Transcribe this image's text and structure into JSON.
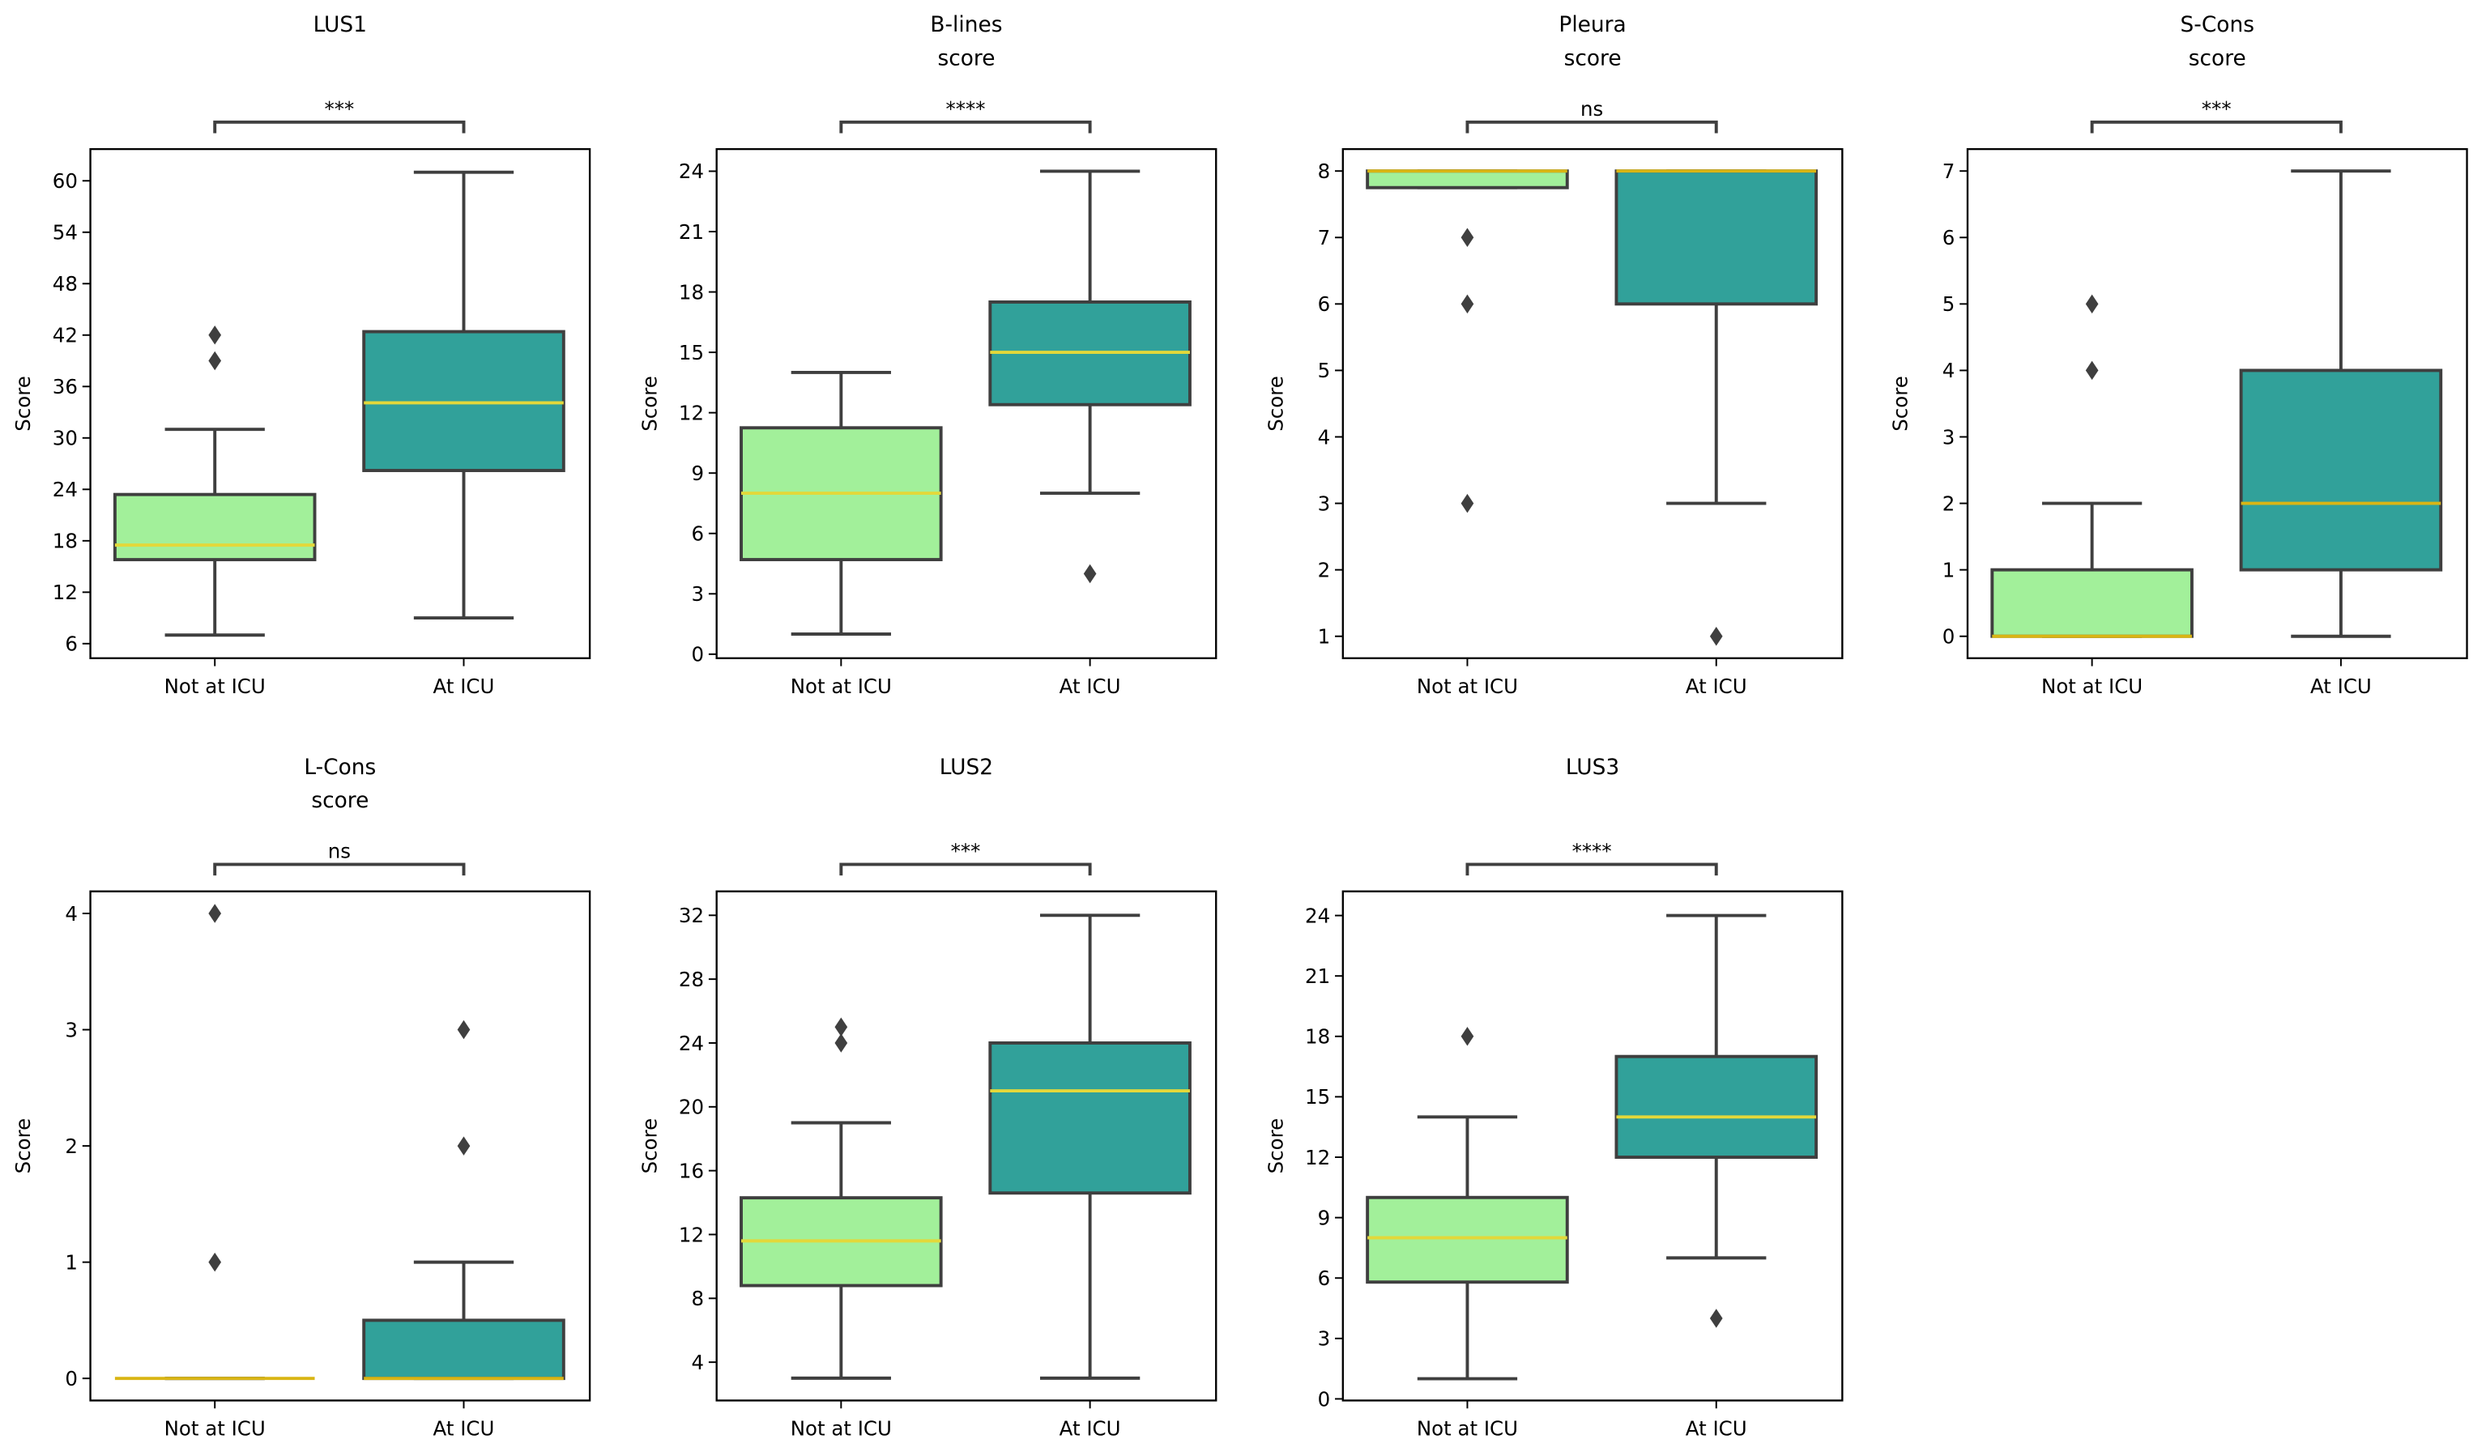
{
  "chart_data": [
    {
      "type": "box",
      "title": "LUS1",
      "y_label": "Score",
      "categories": [
        "Not at ICU",
        "At ICU"
      ],
      "colors": [
        "#a2f09a",
        "#31a19a"
      ],
      "median_color": "#e3d83a",
      "annotation": "***",
      "boxes": [
        {
          "whislo": 7,
          "q1": 15.8,
          "med": 17.5,
          "q3": 23.4,
          "whishi": 31,
          "fliers": [
            39,
            42
          ]
        },
        {
          "whislo": 9,
          "q1": 26.2,
          "med": 34.1,
          "q3": 42.4,
          "whishi": 61,
          "fliers": []
        }
      ],
      "ylim": [
        4.3,
        63.7
      ],
      "yticks": [
        6,
        12,
        18,
        24,
        30,
        36,
        42,
        48,
        54,
        60
      ]
    },
    {
      "type": "box",
      "title": "B-lines\nscore",
      "y_label": "Score",
      "categories": [
        "Not at ICU",
        "At ICU"
      ],
      "colors": [
        "#a2f09a",
        "#31a19a"
      ],
      "median_color": "#e3d83a",
      "annotation": "****",
      "boxes": [
        {
          "whislo": 1,
          "q1": 4.7,
          "med": 8,
          "q3": 11.25,
          "whishi": 14,
          "fliers": []
        },
        {
          "whislo": 8,
          "q1": 12.4,
          "med": 15,
          "q3": 17.5,
          "whishi": 24,
          "fliers": [
            4
          ]
        }
      ],
      "ylim": [
        -0.2,
        25.1
      ],
      "yticks": [
        0,
        3,
        6,
        9,
        12,
        15,
        18,
        21,
        24
      ]
    },
    {
      "type": "box",
      "title": "Pleura\nscore",
      "y_label": "Score",
      "categories": [
        "Not at ICU",
        "At ICU"
      ],
      "colors": [
        "#a2f09a",
        "#31a19a"
      ],
      "median_color": "#d9b514",
      "annotation": "ns",
      "boxes": [
        {
          "whislo": 7.75,
          "q1": 7.75,
          "med": 8,
          "q3": 8,
          "whishi": 8,
          "fliers": [
            7,
            6,
            3
          ]
        },
        {
          "whislo": 3,
          "q1": 6,
          "med": 8,
          "q3": 8,
          "whishi": 8,
          "fliers": [
            1
          ]
        }
      ],
      "ylim": [
        0.67,
        8.33
      ],
      "yticks": [
        1,
        2,
        3,
        4,
        5,
        6,
        7,
        8
      ]
    },
    {
      "type": "box",
      "title": "S-Cons\nscore",
      "y_label": "Score",
      "categories": [
        "Not at ICU",
        "At ICU"
      ],
      "colors": [
        "#a2f09a",
        "#31a19a"
      ],
      "median_color": "#d9b514",
      "annotation": "***",
      "boxes": [
        {
          "whislo": 0,
          "q1": 0,
          "med": 0,
          "q3": 1,
          "whishi": 2,
          "fliers": [
            4,
            5
          ]
        },
        {
          "whislo": 0,
          "q1": 1,
          "med": 2,
          "q3": 4,
          "whishi": 7,
          "fliers": []
        }
      ],
      "ylim": [
        -0.33,
        7.33
      ],
      "yticks": [
        0,
        1,
        2,
        3,
        4,
        5,
        6,
        7
      ]
    },
    {
      "type": "box",
      "title": "L-Cons\nscore",
      "y_label": "Score",
      "categories": [
        "Not at ICU",
        "At ICU"
      ],
      "colors": [
        "#a2f09a",
        "#31a19a"
      ],
      "median_color": "#d9b514",
      "annotation": "ns",
      "boxes": [
        {
          "whislo": 0,
          "q1": 0,
          "med": 0,
          "q3": 0,
          "whishi": 0,
          "fliers": [
            1,
            4
          ]
        },
        {
          "whislo": 0,
          "q1": 0,
          "med": 0,
          "q3": 0.5,
          "whishi": 1,
          "fliers": [
            2,
            3
          ]
        }
      ],
      "ylim": [
        -0.19,
        4.19
      ],
      "yticks": [
        0,
        1,
        2,
        3,
        4
      ]
    },
    {
      "type": "box",
      "title": "LUS2",
      "y_label": "Score",
      "categories": [
        "Not at ICU",
        "At ICU"
      ],
      "colors": [
        "#a2f09a",
        "#31a19a"
      ],
      "median_color": "#e3d83a",
      "annotation": "***",
      "boxes": [
        {
          "whislo": 3,
          "q1": 8.8,
          "med": 11.6,
          "q3": 14.3,
          "whishi": 19,
          "fliers": [
            24,
            25
          ]
        },
        {
          "whislo": 3,
          "q1": 14.6,
          "med": 21,
          "q3": 24,
          "whishi": 32,
          "fliers": []
        }
      ],
      "ylim": [
        1.6,
        33.5
      ],
      "yticks": [
        4,
        8,
        12,
        16,
        20,
        24,
        28,
        32
      ]
    },
    {
      "type": "box",
      "title": "LUS3",
      "y_label": "Score",
      "categories": [
        "Not at ICU",
        "At ICU"
      ],
      "colors": [
        "#a2f09a",
        "#31a19a"
      ],
      "median_color": "#e3d83a",
      "annotation": "****",
      "boxes": [
        {
          "whislo": 1,
          "q1": 5.8,
          "med": 8,
          "q3": 10,
          "whishi": 14,
          "fliers": [
            18
          ]
        },
        {
          "whislo": 7,
          "q1": 12,
          "med": 14,
          "q3": 17,
          "whishi": 24,
          "fliers": [
            4
          ]
        }
      ],
      "ylim": [
        -0.08,
        25.2
      ],
      "yticks": [
        0,
        3,
        6,
        9,
        12,
        15,
        18,
        21,
        24
      ]
    }
  ]
}
